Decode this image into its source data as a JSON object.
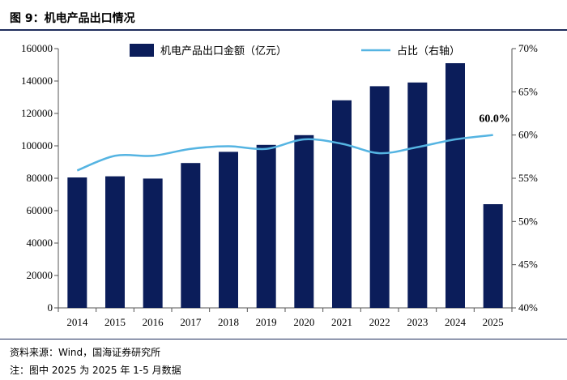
{
  "figure_title": "图 9：机电产品出口情况",
  "source_text": "资料来源：Wind，国海证券研究所",
  "note_text": "注：图中 2025 为 2025 年 1-5 月数据",
  "colors": {
    "bar": "#0b1d5a",
    "line": "#55b4e2",
    "rule": "#1f2d5c",
    "axis": "#555555"
  },
  "chart_data": {
    "type": "bar",
    "title": "",
    "categories": [
      "2014",
      "2015",
      "2016",
      "2017",
      "2018",
      "2019",
      "2020",
      "2021",
      "2022",
      "2023",
      "2024",
      "2025"
    ],
    "series": [
      {
        "name": "机电产品出口金额（亿元）",
        "type": "bar",
        "axis": "left",
        "values": [
          80500,
          81200,
          79800,
          89400,
          96300,
          100600,
          106600,
          128100,
          136800,
          139100,
          151000,
          64000
        ]
      },
      {
        "name": "占比（右轴）",
        "type": "line",
        "axis": "right",
        "values": [
          55.9,
          57.6,
          57.6,
          58.4,
          58.7,
          58.4,
          59.5,
          59.0,
          57.9,
          58.6,
          59.5,
          60.0
        ]
      }
    ],
    "left_axis": {
      "min": 0,
      "max": 160000,
      "ticks": [
        0,
        20000,
        40000,
        60000,
        80000,
        100000,
        120000,
        140000,
        160000
      ],
      "tick_labels": [
        "0",
        "20000",
        "40000",
        "60000",
        "80000",
        "100000",
        "120000",
        "140000",
        "160000"
      ]
    },
    "right_axis": {
      "min": 40,
      "max": 70,
      "ticks": [
        40,
        45,
        50,
        55,
        60,
        65,
        70
      ],
      "tick_labels": [
        "40%",
        "45%",
        "50%",
        "55%",
        "60%",
        "65%",
        "70%"
      ]
    },
    "annotations": [
      {
        "text": "60.0%",
        "series": 1,
        "index": 11
      }
    ],
    "legend_position": "top"
  }
}
